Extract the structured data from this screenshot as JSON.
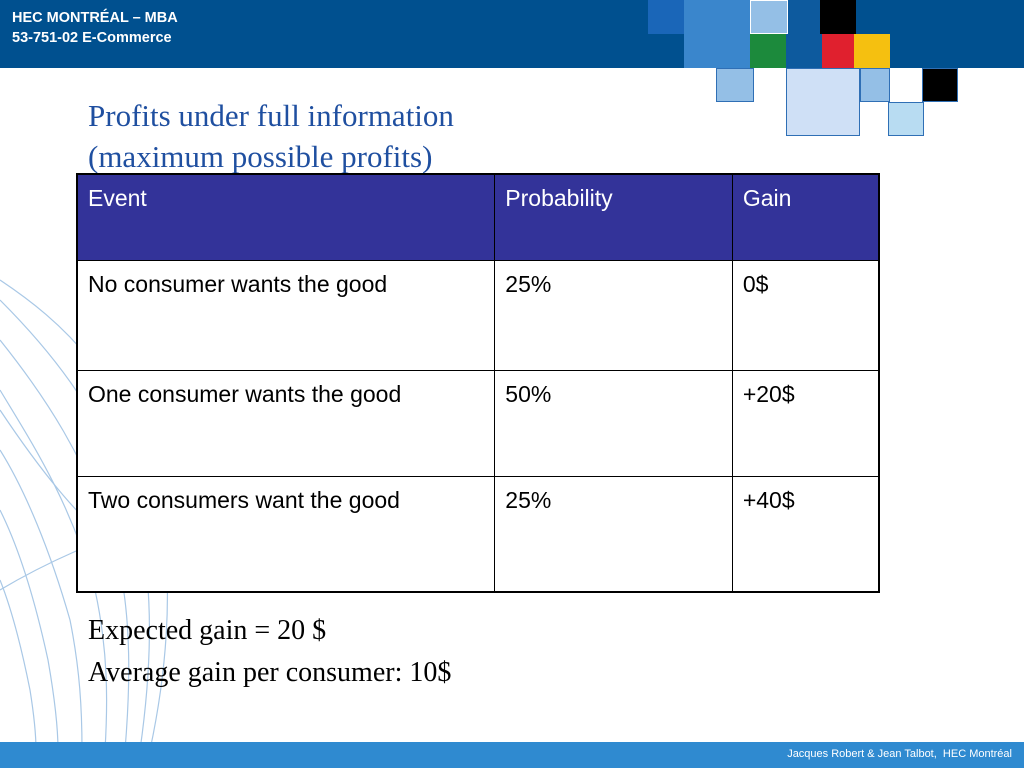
{
  "header": {
    "line1": "HEC MONTRÉAL – MBA",
    "line2": "53-751-02 E-Commerce"
  },
  "title": {
    "line1": "Profits under full information",
    "line2": "(maximum possible profits)"
  },
  "table": {
    "headers": [
      "Event",
      "Probability",
      "Gain"
    ],
    "rows": [
      [
        "No consumer wants the good",
        "25%",
        "0$"
      ],
      [
        "One consumer wants the good",
        "50%",
        "+20$"
      ],
      [
        "Two consumers want the good",
        "25%",
        "+40$"
      ]
    ]
  },
  "summary": {
    "line1": "Expected gain = 20 $",
    "line2": "Average gain per consumer: 10$"
  },
  "footer": {
    "credit": "Jacques Robert & Jean Talbot,  HEC Montréal"
  },
  "colors": {
    "header_band": "#00508f",
    "title_text": "#1f4fa0",
    "table_header_bg": "#333399",
    "footer_band": "#2f8ad0"
  }
}
